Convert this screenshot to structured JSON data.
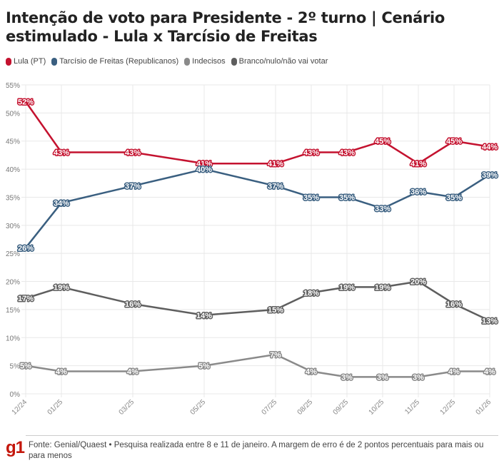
{
  "chart_data": {
    "type": "line",
    "title": "Intenção de voto para Presidente - 2º turno | Cenário estimulado - Lula x Tarcísio de Freitas",
    "xlabel": "",
    "ylabel": "",
    "ylim": [
      0,
      55
    ],
    "yticks": [
      0,
      5,
      10,
      15,
      20,
      25,
      30,
      35,
      40,
      45,
      50,
      55
    ],
    "ytick_labels": [
      "0%",
      "5%",
      "10%",
      "15%",
      "20%",
      "25%",
      "30%",
      "35%",
      "40%",
      "45%",
      "50%",
      "55%"
    ],
    "grid": true,
    "legend_position": "top-left",
    "categories": [
      "12/24",
      "01/25",
      "03/25",
      "05/25",
      "07/25",
      "08/25",
      "09/25",
      "10/25",
      "11/25",
      "12/25",
      "01/26"
    ],
    "x_month_index": [
      0,
      1,
      3,
      5,
      7,
      8,
      9,
      10,
      11,
      12,
      13
    ],
    "series": [
      {
        "name": "Lula (PT)",
        "color": "#c4122f",
        "values": [
          52,
          43,
          43,
          41,
          41,
          43,
          43,
          45,
          41,
          45,
          44
        ]
      },
      {
        "name": "Tarcísio de Freitas (Republicanos)",
        "color": "#3a5f80",
        "values": [
          26,
          34,
          37,
          40,
          37,
          35,
          35,
          33,
          36,
          35,
          39
        ]
      },
      {
        "name": "Indecisos",
        "color": "#8a8a8a",
        "values": [
          5,
          4,
          4,
          5,
          7,
          4,
          3,
          3,
          3,
          4,
          4
        ]
      },
      {
        "name": "Branco/nulo/não vai votar",
        "color": "#5e5e5e",
        "values": [
          17,
          19,
          16,
          14,
          15,
          18,
          19,
          19,
          20,
          16,
          13
        ]
      }
    ],
    "value_suffix": "%"
  },
  "header": {
    "title": "Intenção de voto para Presidente - 2º turno | Cenário estimulado - Lula x Tarcísio de Freitas"
  },
  "legend": [
    {
      "label": "Lula (PT)",
      "color": "#c4122f"
    },
    {
      "label": "Tarcísio de Freitas (Republicanos)",
      "color": "#3a5f80"
    },
    {
      "label": "Indecisos",
      "color": "#8a8a8a"
    },
    {
      "label": "Branco/nulo/não vai votar",
      "color": "#5e5e5e"
    }
  ],
  "footer": {
    "logo": "g1",
    "logo_color": "#c4170c",
    "source": "Fonte: Genial/Quaest • Pesquisa realizada entre 8 e 11 de janeiro. A margem de erro é de 2 pontos percentuais para mais ou para menos"
  }
}
